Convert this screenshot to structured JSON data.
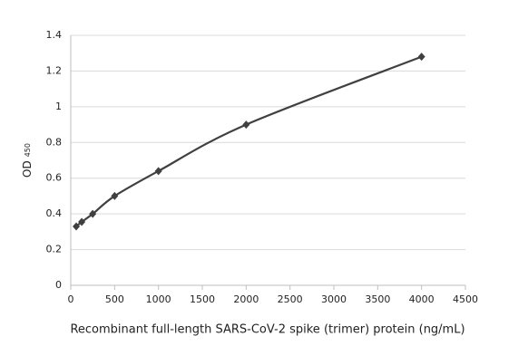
{
  "chart_data": {
    "type": "scatter",
    "x_label": "Recombinant full-length SARS-CoV-2 spike (trimer) protein (ng/mL)",
    "y_label": "OD",
    "y_label_subscript": "450",
    "series": [
      {
        "color": "#404040",
        "x": [
          62.5,
          125,
          250,
          500,
          1000,
          2000,
          4000
        ],
        "values": [
          0.33,
          0.355,
          0.4,
          0.5,
          0.64,
          0.9,
          1.28
        ]
      }
    ],
    "xlim": [
      0,
      4500
    ],
    "xticks": [
      0,
      500,
      1000,
      1500,
      2000,
      2500,
      3000,
      3500,
      4000,
      4500
    ],
    "ylim": [
      0,
      1.4
    ],
    "yticks": [
      0,
      0.2,
      0.4,
      0.6,
      0.8,
      1,
      1.2,
      1.4
    ],
    "grid": true
  }
}
